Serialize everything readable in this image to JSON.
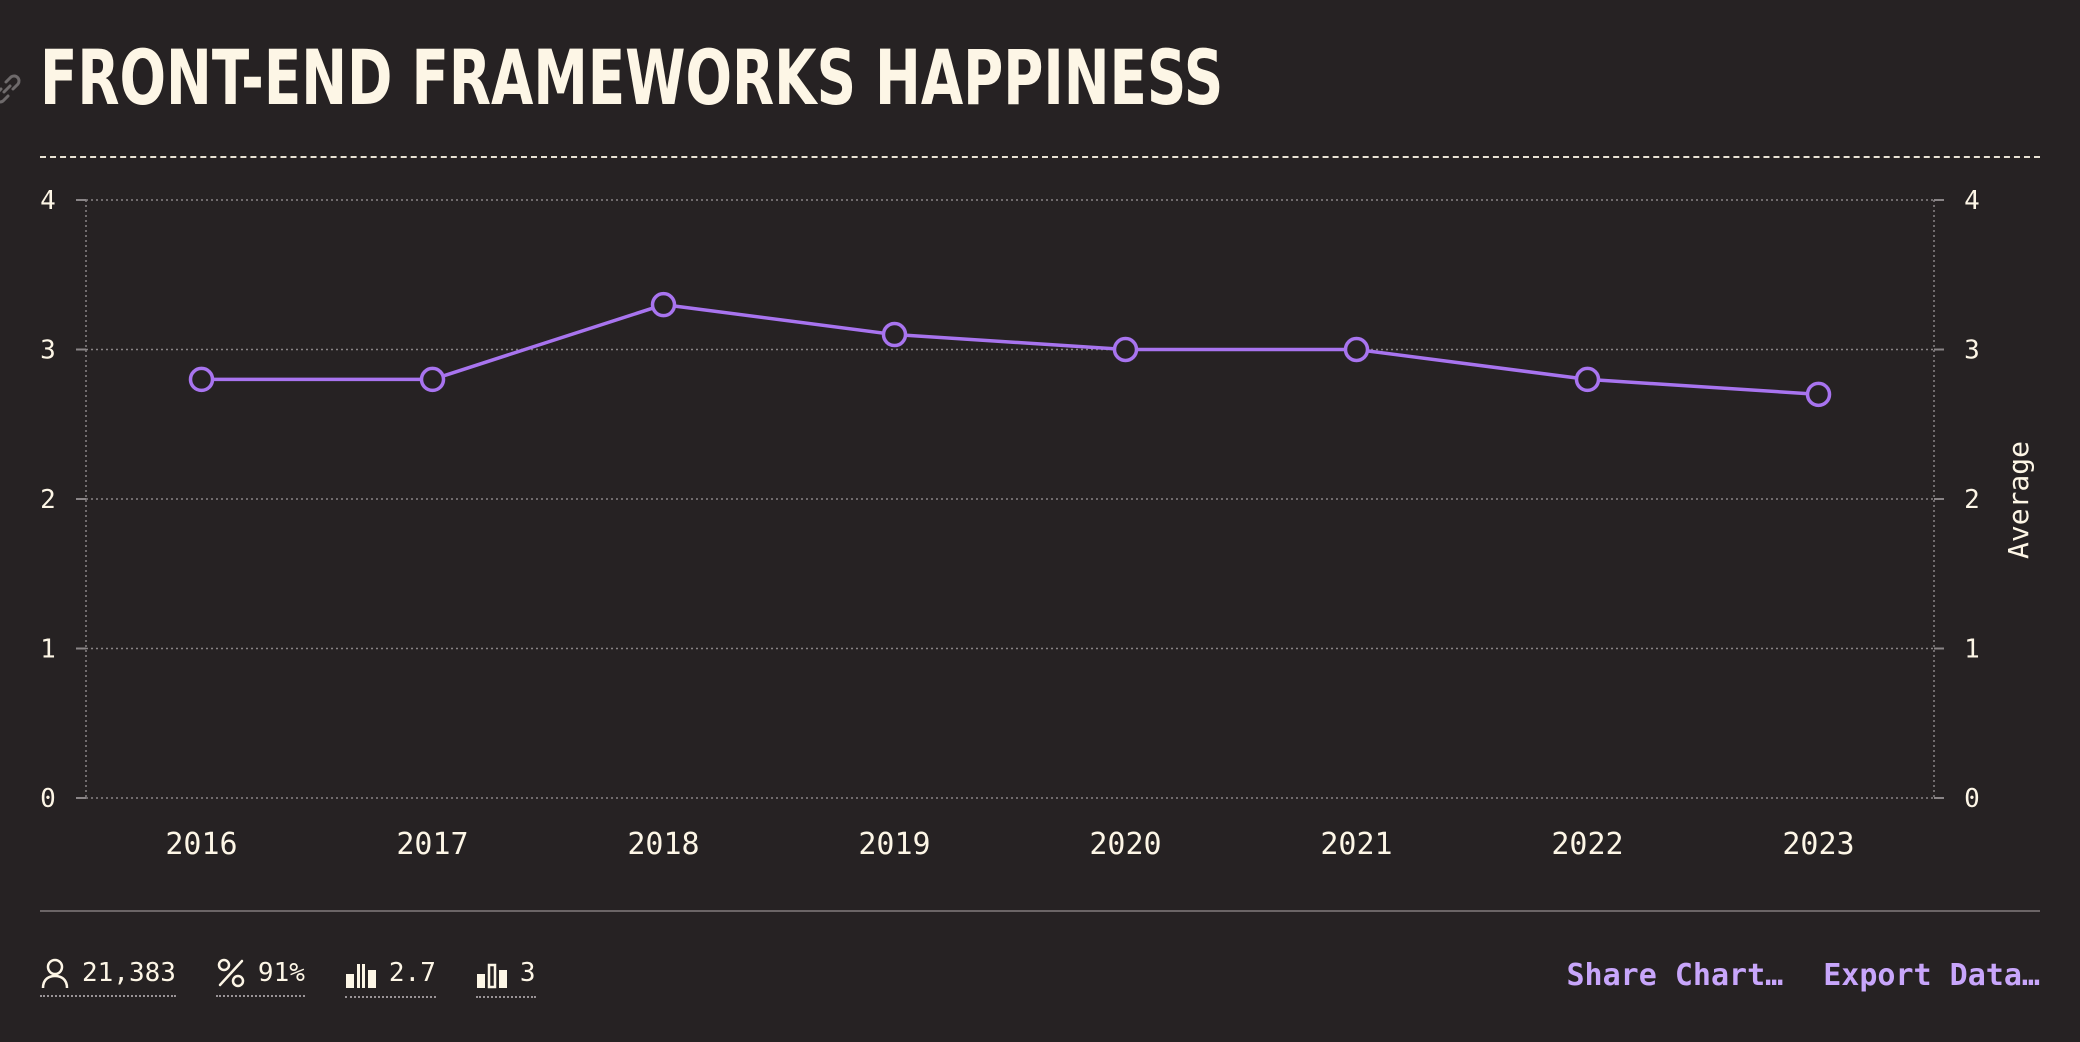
{
  "title": "FRONT-END FRAMEWORKS HAPPINESS",
  "colors": {
    "background": "#262223",
    "text": "#fdf6e6",
    "accent": "#a874ef",
    "link": "#c8a6fb",
    "grid": "#8a8587"
  },
  "chart_data": {
    "type": "line",
    "x": [
      "2016",
      "2017",
      "2018",
      "2019",
      "2020",
      "2021",
      "2022",
      "2023"
    ],
    "series": [
      {
        "values": [
          2.8,
          2.8,
          3.3,
          3.1,
          3.0,
          3.0,
          2.8,
          2.7
        ]
      }
    ],
    "ylim": [
      0,
      4
    ],
    "yticks": [
      "0",
      "1",
      "2",
      "3",
      "4"
    ],
    "ylabel_right": "Average",
    "grid": true,
    "marker": "hollow-circle"
  },
  "stats": [
    {
      "icon": "respondents-icon",
      "value": "21,383"
    },
    {
      "icon": "percent-icon",
      "value": "91%"
    },
    {
      "icon": "average-icon",
      "value": "2.7"
    },
    {
      "icon": "median-icon",
      "value": "3"
    }
  ],
  "actions": {
    "share_label": "Share Chart…",
    "export_label": "Export Data…"
  }
}
